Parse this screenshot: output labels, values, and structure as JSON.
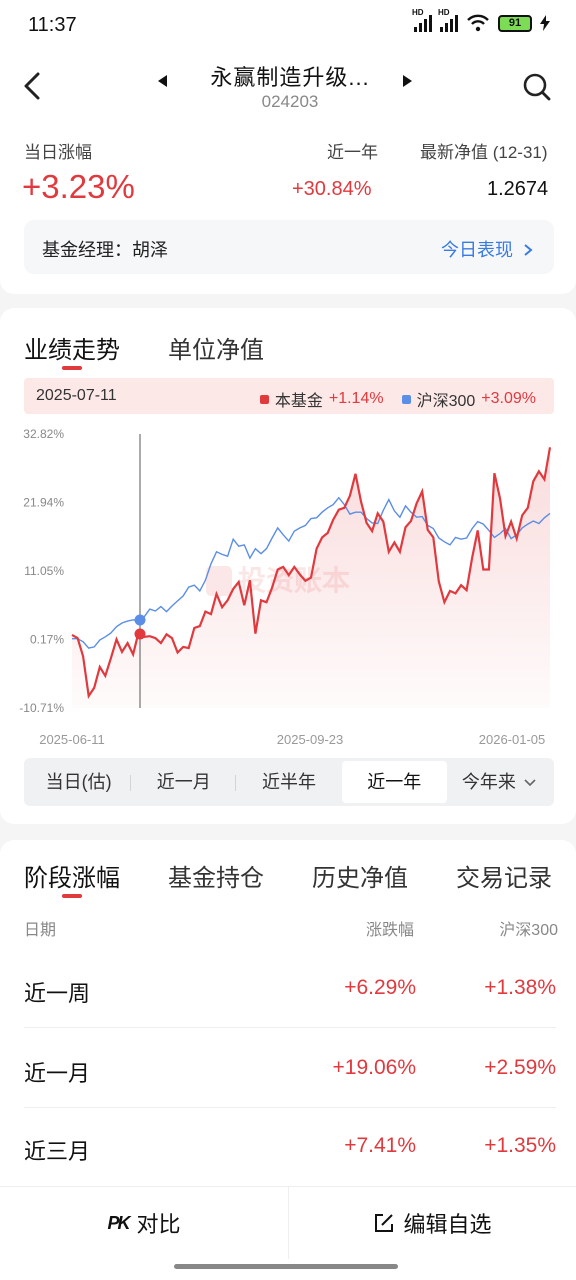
{
  "status_bar": {
    "time": "11:37",
    "battery": "91"
  },
  "header": {
    "fund_name": "永赢制造升级...",
    "fund_code": "024203"
  },
  "summary": {
    "today_label": "当日涨幅",
    "today_value": "+3.23%",
    "year_label": "近一年",
    "year_value": "+30.84%",
    "nav_label": "最新净值 (12-31)",
    "nav_value": "1.2674",
    "manager": "基金经理：胡泽",
    "today_perf_link": "今日表现"
  },
  "chart_tabs": [
    "业绩走势",
    "单位净值"
  ],
  "legend": {
    "date": "2025-07-11",
    "fund_name": "本基金",
    "fund_value": "+1.14%",
    "index_name": "沪深300",
    "index_value": "+3.09%",
    "fund_color": "#e0393e",
    "index_color": "#5b8ee6"
  },
  "watermark": "投资账本",
  "chart_data": {
    "type": "line",
    "x_labels": [
      "2025-06-11",
      "2025-09-23",
      "2026-01-05"
    ],
    "y_ticks": [
      "32.82%",
      "21.94%",
      "11.05%",
      "0.17%",
      "-10.71%"
    ],
    "ylim": [
      -10.71,
      32.82
    ],
    "series": [
      {
        "name": "本基金",
        "color": "#e0393e",
        "values": [
          0.9,
          0.4,
          -2.5,
          -8.8,
          -7.5,
          -4.2,
          -5.6,
          -2.8,
          0.2,
          -1.8,
          -0.4,
          -2.2,
          1.4,
          0.6,
          0.7,
          0.4,
          -0.4,
          1.0,
          0.4,
          -1.9,
          -1.0,
          -1.2,
          2.0,
          2.3,
          4.6,
          4.2,
          7.4,
          5.3,
          6.4,
          8.2,
          9.3,
          5.6,
          9.6,
          1.1,
          6.4,
          6.1,
          8.4,
          11.3,
          11.7,
          10.4,
          11.7,
          10.5,
          9.5,
          10.0,
          14.6,
          16.4,
          17.1,
          19.2,
          20.8,
          21.1,
          23.0,
          26.5,
          22.1,
          18.7,
          17.4,
          20.2,
          18.9,
          14.1,
          15.6,
          14.1,
          18.0,
          19.0,
          21.8,
          23.7,
          17.6,
          16.4,
          9.4,
          6.1,
          7.9,
          7.5,
          8.8,
          8.0,
          13.2,
          17.5,
          11.3,
          11.3,
          26.6,
          22.6,
          16.6,
          18.9,
          16.2,
          19.9,
          21.1,
          25.3,
          26.9,
          25.6,
          30.7
        ],
        "visible_points": "thin",
        "last": 30.7
      },
      {
        "name": "沪深300",
        "color": "#5b8ee6",
        "values": [
          0.3,
          0.3,
          -0.2,
          -1.2,
          -1.0,
          0.1,
          0.6,
          1.2,
          2.2,
          2.8,
          3.1,
          3.3,
          3.1,
          3.8,
          5.0,
          4.7,
          5.4,
          4.6,
          5.5,
          6.3,
          7.1,
          8.5,
          8.8,
          7.9,
          9.6,
          12.2,
          14.1,
          13.7,
          13.4,
          16.1,
          15.0,
          15.2,
          13.1,
          14.6,
          13.8,
          14.6,
          16.3,
          17.9,
          16.8,
          15.8,
          17.4,
          17.9,
          18.3,
          19.4,
          19.5,
          20.4,
          21.1,
          21.6,
          22.7,
          21.6,
          20.1,
          20.4,
          20.4,
          19.4,
          18.7,
          18.6,
          20.7,
          22.4,
          20.6,
          19.6,
          21.4,
          20.4,
          19.6,
          19.7,
          18.3,
          17.8,
          16.3,
          15.7,
          15.2,
          16.4,
          16.1,
          16.3,
          17.8,
          18.9,
          18.5,
          17.5,
          16.4,
          17.0,
          17.8,
          16.2,
          16.8,
          17.9,
          18.5,
          19.0,
          18.6,
          19.5,
          20.2
        ],
        "last": 20.2
      }
    ],
    "grid": false,
    "legend": "top"
  },
  "range_tabs": [
    "当日(估)",
    "近一月",
    "近半年",
    "近一年",
    "今年来"
  ],
  "range_active": "近一年",
  "stage_tabs": [
    "阶段涨幅",
    "基金持仓",
    "历史净值",
    "交易记录"
  ],
  "stage_table": {
    "headers": {
      "date": "日期",
      "change": "涨跌幅",
      "index": "沪深300"
    },
    "rows": [
      {
        "name": "近一周",
        "change": "+6.29%",
        "index": "+1.38%"
      },
      {
        "name": "近一月",
        "change": "+19.06%",
        "index": "+2.59%"
      },
      {
        "name": "近三月",
        "change": "+7.41%",
        "index": "+1.35%"
      }
    ]
  },
  "bottom_bar": {
    "compare": "对比",
    "edit": "编辑自选",
    "compare_icon": "PK"
  }
}
